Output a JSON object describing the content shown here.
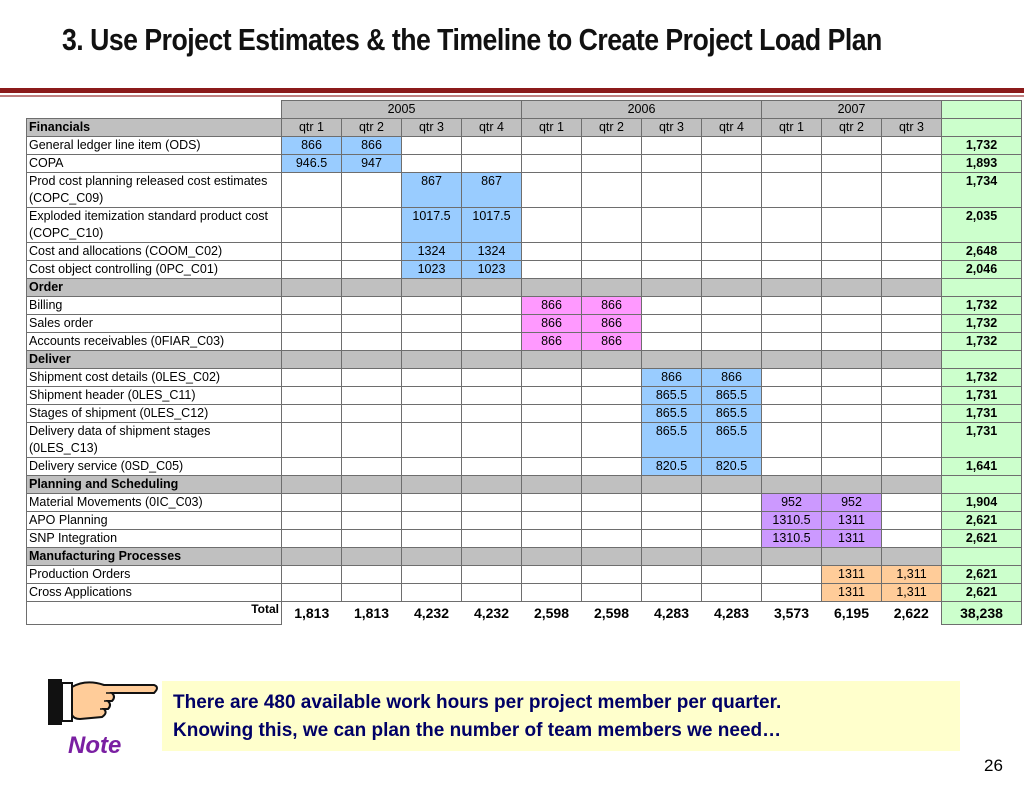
{
  "title": "3. Use Project Estimates & the Timeline to Create Project Load Plan",
  "years": [
    "2005",
    "2006",
    "2007"
  ],
  "quarters": [
    "qtr 1",
    "qtr 2",
    "qtr 3",
    "qtr 4",
    "qtr 1",
    "qtr 2",
    "qtr 3",
    "qtr 4",
    "qtr 1",
    "qtr 2",
    "qtr 3"
  ],
  "header_label": "Financials",
  "colors": {
    "blue": "#99ccff",
    "pink": "#ff99ff",
    "lavender": "#cc99ff",
    "peach": "#ffcc99",
    "total_green": "#ccffcc",
    "section_gray": "#c0c0c0"
  },
  "sections": [
    {
      "name": "",
      "rows": [
        {
          "label": "General ledger line item (ODS)",
          "values": [
            "866",
            "866",
            "",
            "",
            "",
            "",
            "",
            "",
            "",
            "",
            ""
          ],
          "total": "1,732"
        },
        {
          "label": "COPA",
          "values": [
            "946.5",
            "947",
            "",
            "",
            "",
            "",
            "",
            "",
            "",
            "",
            ""
          ],
          "total": "1,893"
        },
        {
          "label": "Prod cost planning released cost estimates (COPC_C09)",
          "values": [
            "",
            "",
            "867",
            "867",
            "",
            "",
            "",
            "",
            "",
            "",
            ""
          ],
          "total": "1,734"
        },
        {
          "label": "Exploded itemization standard product cost (COPC_C10)",
          "values": [
            "",
            "",
            "1017.5",
            "1017.5",
            "",
            "",
            "",
            "",
            "",
            "",
            ""
          ],
          "total": "2,035"
        },
        {
          "label": "Cost and allocations (COOM_C02)",
          "values": [
            "",
            "",
            "1324",
            "1324",
            "",
            "",
            "",
            "",
            "",
            "",
            ""
          ],
          "total": "2,648"
        },
        {
          "label": "Cost object controlling (0PC_C01)",
          "values": [
            "",
            "",
            "1023",
            "1023",
            "",
            "",
            "",
            "",
            "",
            "",
            ""
          ],
          "total": "2,046"
        }
      ]
    },
    {
      "name": "Order",
      "rows": [
        {
          "label": "Billing",
          "values": [
            "",
            "",
            "",
            "",
            "866",
            "866",
            "",
            "",
            "",
            "",
            ""
          ],
          "total": "1,732"
        },
        {
          "label": "Sales order",
          "values": [
            "",
            "",
            "",
            "",
            "866",
            "866",
            "",
            "",
            "",
            "",
            ""
          ],
          "total": "1,732"
        },
        {
          "label": "Accounts receivables (0FIAR_C03)",
          "values": [
            "",
            "",
            "",
            "",
            "866",
            "866",
            "",
            "",
            "",
            "",
            ""
          ],
          "total": "1,732"
        }
      ]
    },
    {
      "name": "Deliver",
      "rows": [
        {
          "label": "Shipment cost details (0LES_C02)",
          "values": [
            "",
            "",
            "",
            "",
            "",
            "",
            "866",
            "866",
            "",
            "",
            ""
          ],
          "total": "1,732"
        },
        {
          "label": "Shipment header (0LES_C11)",
          "values": [
            "",
            "",
            "",
            "",
            "",
            "",
            "865.5",
            "865.5",
            "",
            "",
            ""
          ],
          "total": "1,731"
        },
        {
          "label": "Stages of shipment (0LES_C12)",
          "values": [
            "",
            "",
            "",
            "",
            "",
            "",
            "865.5",
            "865.5",
            "",
            "",
            ""
          ],
          "total": "1,731"
        },
        {
          "label": "Delivery data of shipment stages (0LES_C13)",
          "values": [
            "",
            "",
            "",
            "",
            "",
            "",
            "865.5",
            "865.5",
            "",
            "",
            ""
          ],
          "total": "1,731"
        },
        {
          "label": "Delivery service (0SD_C05)",
          "values": [
            "",
            "",
            "",
            "",
            "",
            "",
            "820.5",
            "820.5",
            "",
            "",
            ""
          ],
          "total": "1,641"
        }
      ]
    },
    {
      "name": "Planning and Scheduling",
      "rows": [
        {
          "label": "Material Movements (0IC_C03)",
          "values": [
            "",
            "",
            "",
            "",
            "",
            "",
            "",
            "",
            "952",
            "952",
            ""
          ],
          "total": "1,904"
        },
        {
          "label": "APO Planning",
          "values": [
            "",
            "",
            "",
            "",
            "",
            "",
            "",
            "",
            "1310.5",
            "1311",
            ""
          ],
          "total": "2,621"
        },
        {
          "label": "SNP Integration",
          "values": [
            "",
            "",
            "",
            "",
            "",
            "",
            "",
            "",
            "1310.5",
            "1311",
            ""
          ],
          "total": "2,621"
        }
      ]
    },
    {
      "name": "Manufacturing Processes",
      "rows": [
        {
          "label": "Production Orders",
          "values": [
            "",
            "",
            "",
            "",
            "",
            "",
            "",
            "",
            "",
            "1311",
            "1,311"
          ],
          "total": "2,621"
        },
        {
          "label": "Cross Applications",
          "values": [
            "",
            "",
            "",
            "",
            "",
            "",
            "",
            "",
            "",
            "1311",
            "1,311"
          ],
          "total": "2,621"
        }
      ]
    }
  ],
  "totals": {
    "label": "Total",
    "values": [
      "1,813",
      "1,813",
      "4,232",
      "4,232",
      "2,598",
      "2,598",
      "4,283",
      "4,283",
      "3,573",
      "6,195",
      "2,622"
    ],
    "grand_total": "38,238"
  },
  "note": {
    "label": "Note",
    "line1": "There are 480 available work hours per project member per quarter.",
    "line2": "Knowing this, we can plan the number of team members we need…"
  },
  "page_number": "26"
}
